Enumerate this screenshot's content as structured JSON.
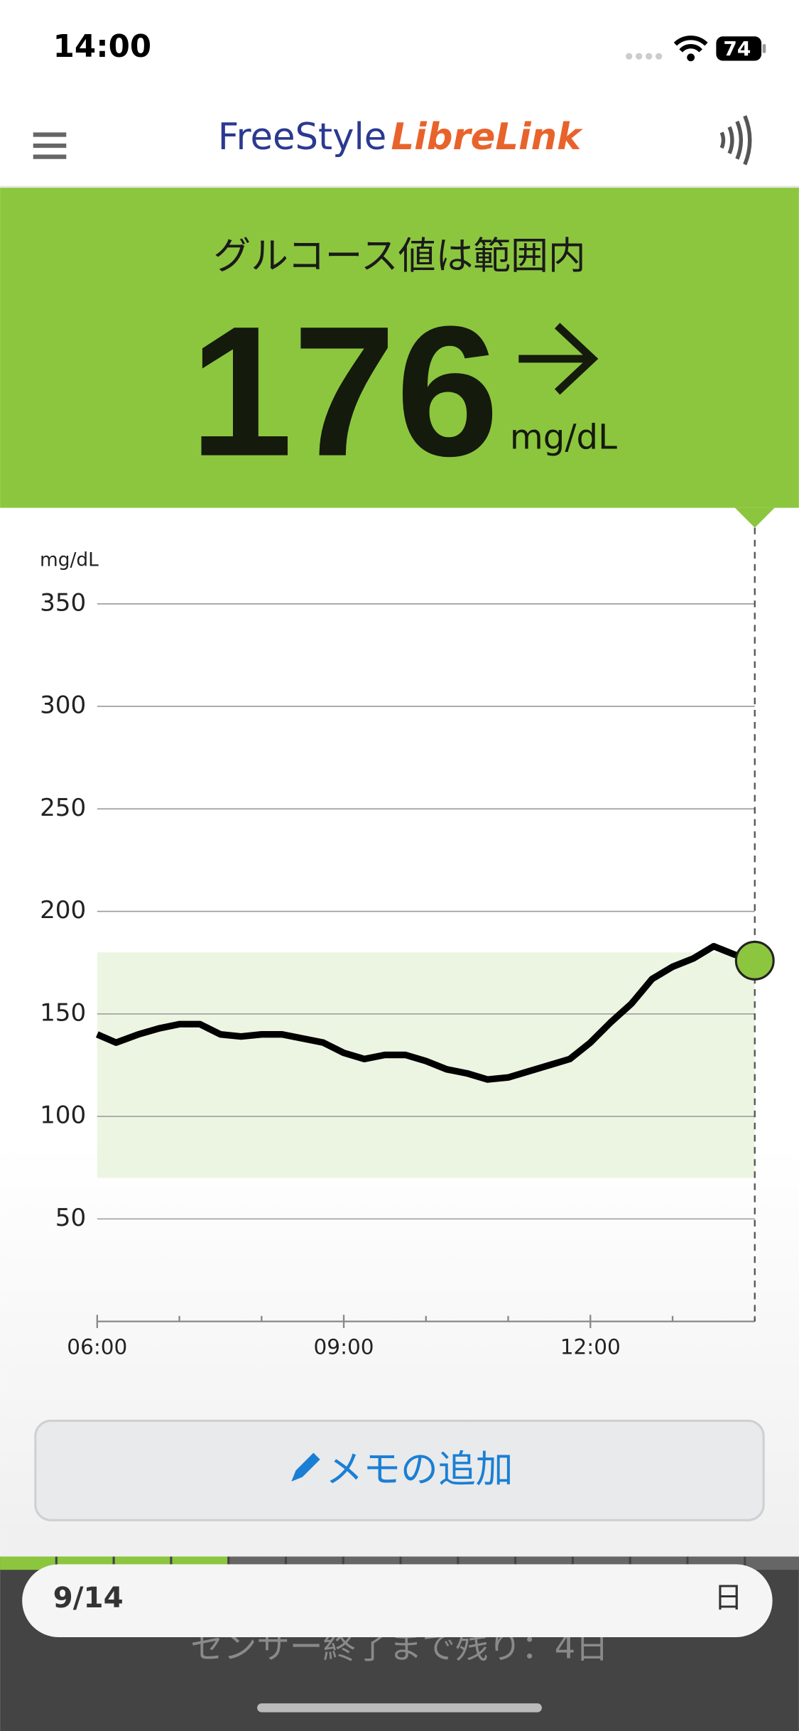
{
  "status_bar": {
    "time": "14:00",
    "battery": "74"
  },
  "header": {
    "logo_part1": "FreeStyle",
    "logo_part2": "LibreLink"
  },
  "reading": {
    "status": "グルコース値は範囲内",
    "value": "176",
    "unit": "mg/dL"
  },
  "chart_data": {
    "type": "line",
    "y_axis_label": "mg/dL",
    "x": [
      6,
      6.23,
      6.5,
      6.76,
      7,
      7.25,
      7.5,
      7.75,
      8,
      8.25,
      8.5,
      8.75,
      9,
      9.25,
      9.5,
      9.75,
      10,
      10.25,
      10.5,
      10.75,
      11,
      11.25,
      11.5,
      11.75,
      12,
      12.25,
      12.5,
      12.75,
      13,
      13.25,
      13.5,
      13.75,
      14
    ],
    "series": [
      {
        "color": "#000000",
        "values": [
          140,
          136,
          140,
          143,
          145,
          145,
          140,
          139,
          140,
          140,
          138,
          136,
          131,
          128,
          130,
          130,
          127,
          123,
          121,
          118,
          119,
          122,
          125,
          128,
          136,
          146,
          155,
          167,
          173,
          177,
          183,
          179,
          176
        ]
      }
    ],
    "current_point_color": "#8cc63f",
    "target_range": [
      70,
      180
    ],
    "target_color": "#ecf5e2",
    "xlim": [
      6,
      14
    ],
    "xticks": [
      {
        "value": 6,
        "label": "06:00"
      },
      {
        "value": 9,
        "label": "09:00"
      },
      {
        "value": 12,
        "label": "12:00"
      }
    ],
    "xminorticks": [
      7,
      8,
      10,
      11,
      13,
      14
    ],
    "ylim": [
      0,
      350
    ],
    "yticks": [
      50,
      100,
      150,
      200,
      250,
      300,
      350
    ],
    "grid": true
  },
  "memo_button": {
    "label": "メモの追加"
  },
  "footer": {
    "date": "9/14",
    "period": "日",
    "sensor_remaining": "センサー終了まで残り：4日"
  }
}
